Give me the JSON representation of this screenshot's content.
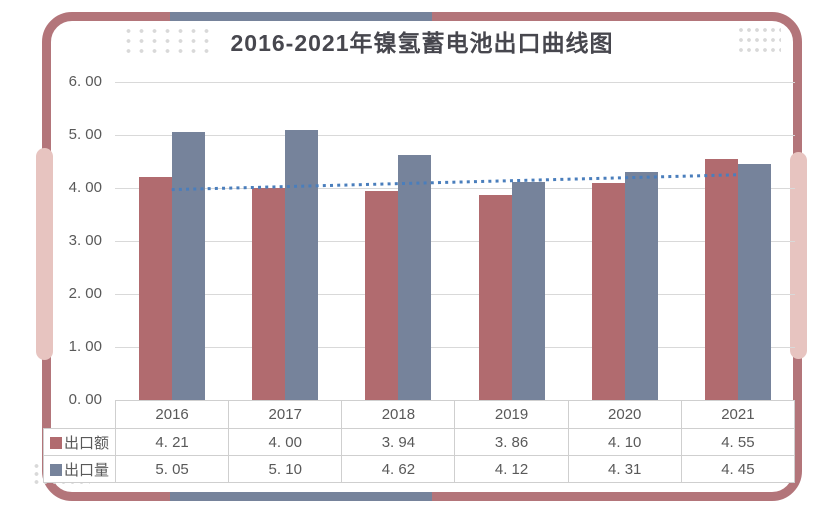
{
  "title": "2016-2021年镍氢蓄电池出口曲线图",
  "colors": {
    "frame_rose": "#b3757a",
    "frame_blue_segment": "#76839b",
    "accent_pink": "#e7c4c0",
    "bar_red": "#b16b6f",
    "bar_blue": "#76839b",
    "trendline_blue": "#4a7ebc",
    "gridline_gray": "#d9d9d9",
    "table_border_gray": "#cfcfcf",
    "text_gray": "#595959",
    "title_color": "#47474e",
    "dots_gray": "#d9d9d9"
  },
  "chart_data": {
    "type": "bar",
    "title": "2016-2021年镍氢蓄电池出口曲线图",
    "categories": [
      "2016",
      "2017",
      "2018",
      "2019",
      "2020",
      "2021"
    ],
    "series": [
      {
        "name": "出口额",
        "key": "export-value",
        "color": "#b16b6f",
        "values": [
          4.21,
          4.0,
          3.94,
          3.86,
          4.1,
          4.55
        ],
        "display": [
          "4. 21",
          "4. 00",
          "3. 94",
          "3. 86",
          "4. 10",
          "4. 55"
        ]
      },
      {
        "name": "出口量",
        "key": "export-volume",
        "color": "#76839b",
        "values": [
          5.05,
          5.1,
          4.62,
          4.12,
          4.31,
          4.45
        ],
        "display": [
          "5. 05",
          "5. 10",
          "4. 62",
          "4. 12",
          "4. 31",
          "4. 45"
        ]
      }
    ],
    "trendline": {
      "for_series": "出口额",
      "fit": "linear",
      "style": "dotted",
      "color": "#4a7ebc",
      "y_start": 3.97,
      "y_end": 4.25
    },
    "ylim": [
      0,
      6
    ],
    "ytick_step": 1,
    "ytick_labels": [
      "0. 00",
      "1. 00",
      "2. 00",
      "3. 00",
      "4. 00",
      "5. 00",
      "6. 00"
    ],
    "grid": true,
    "legend_position": "table-row-labels"
  }
}
